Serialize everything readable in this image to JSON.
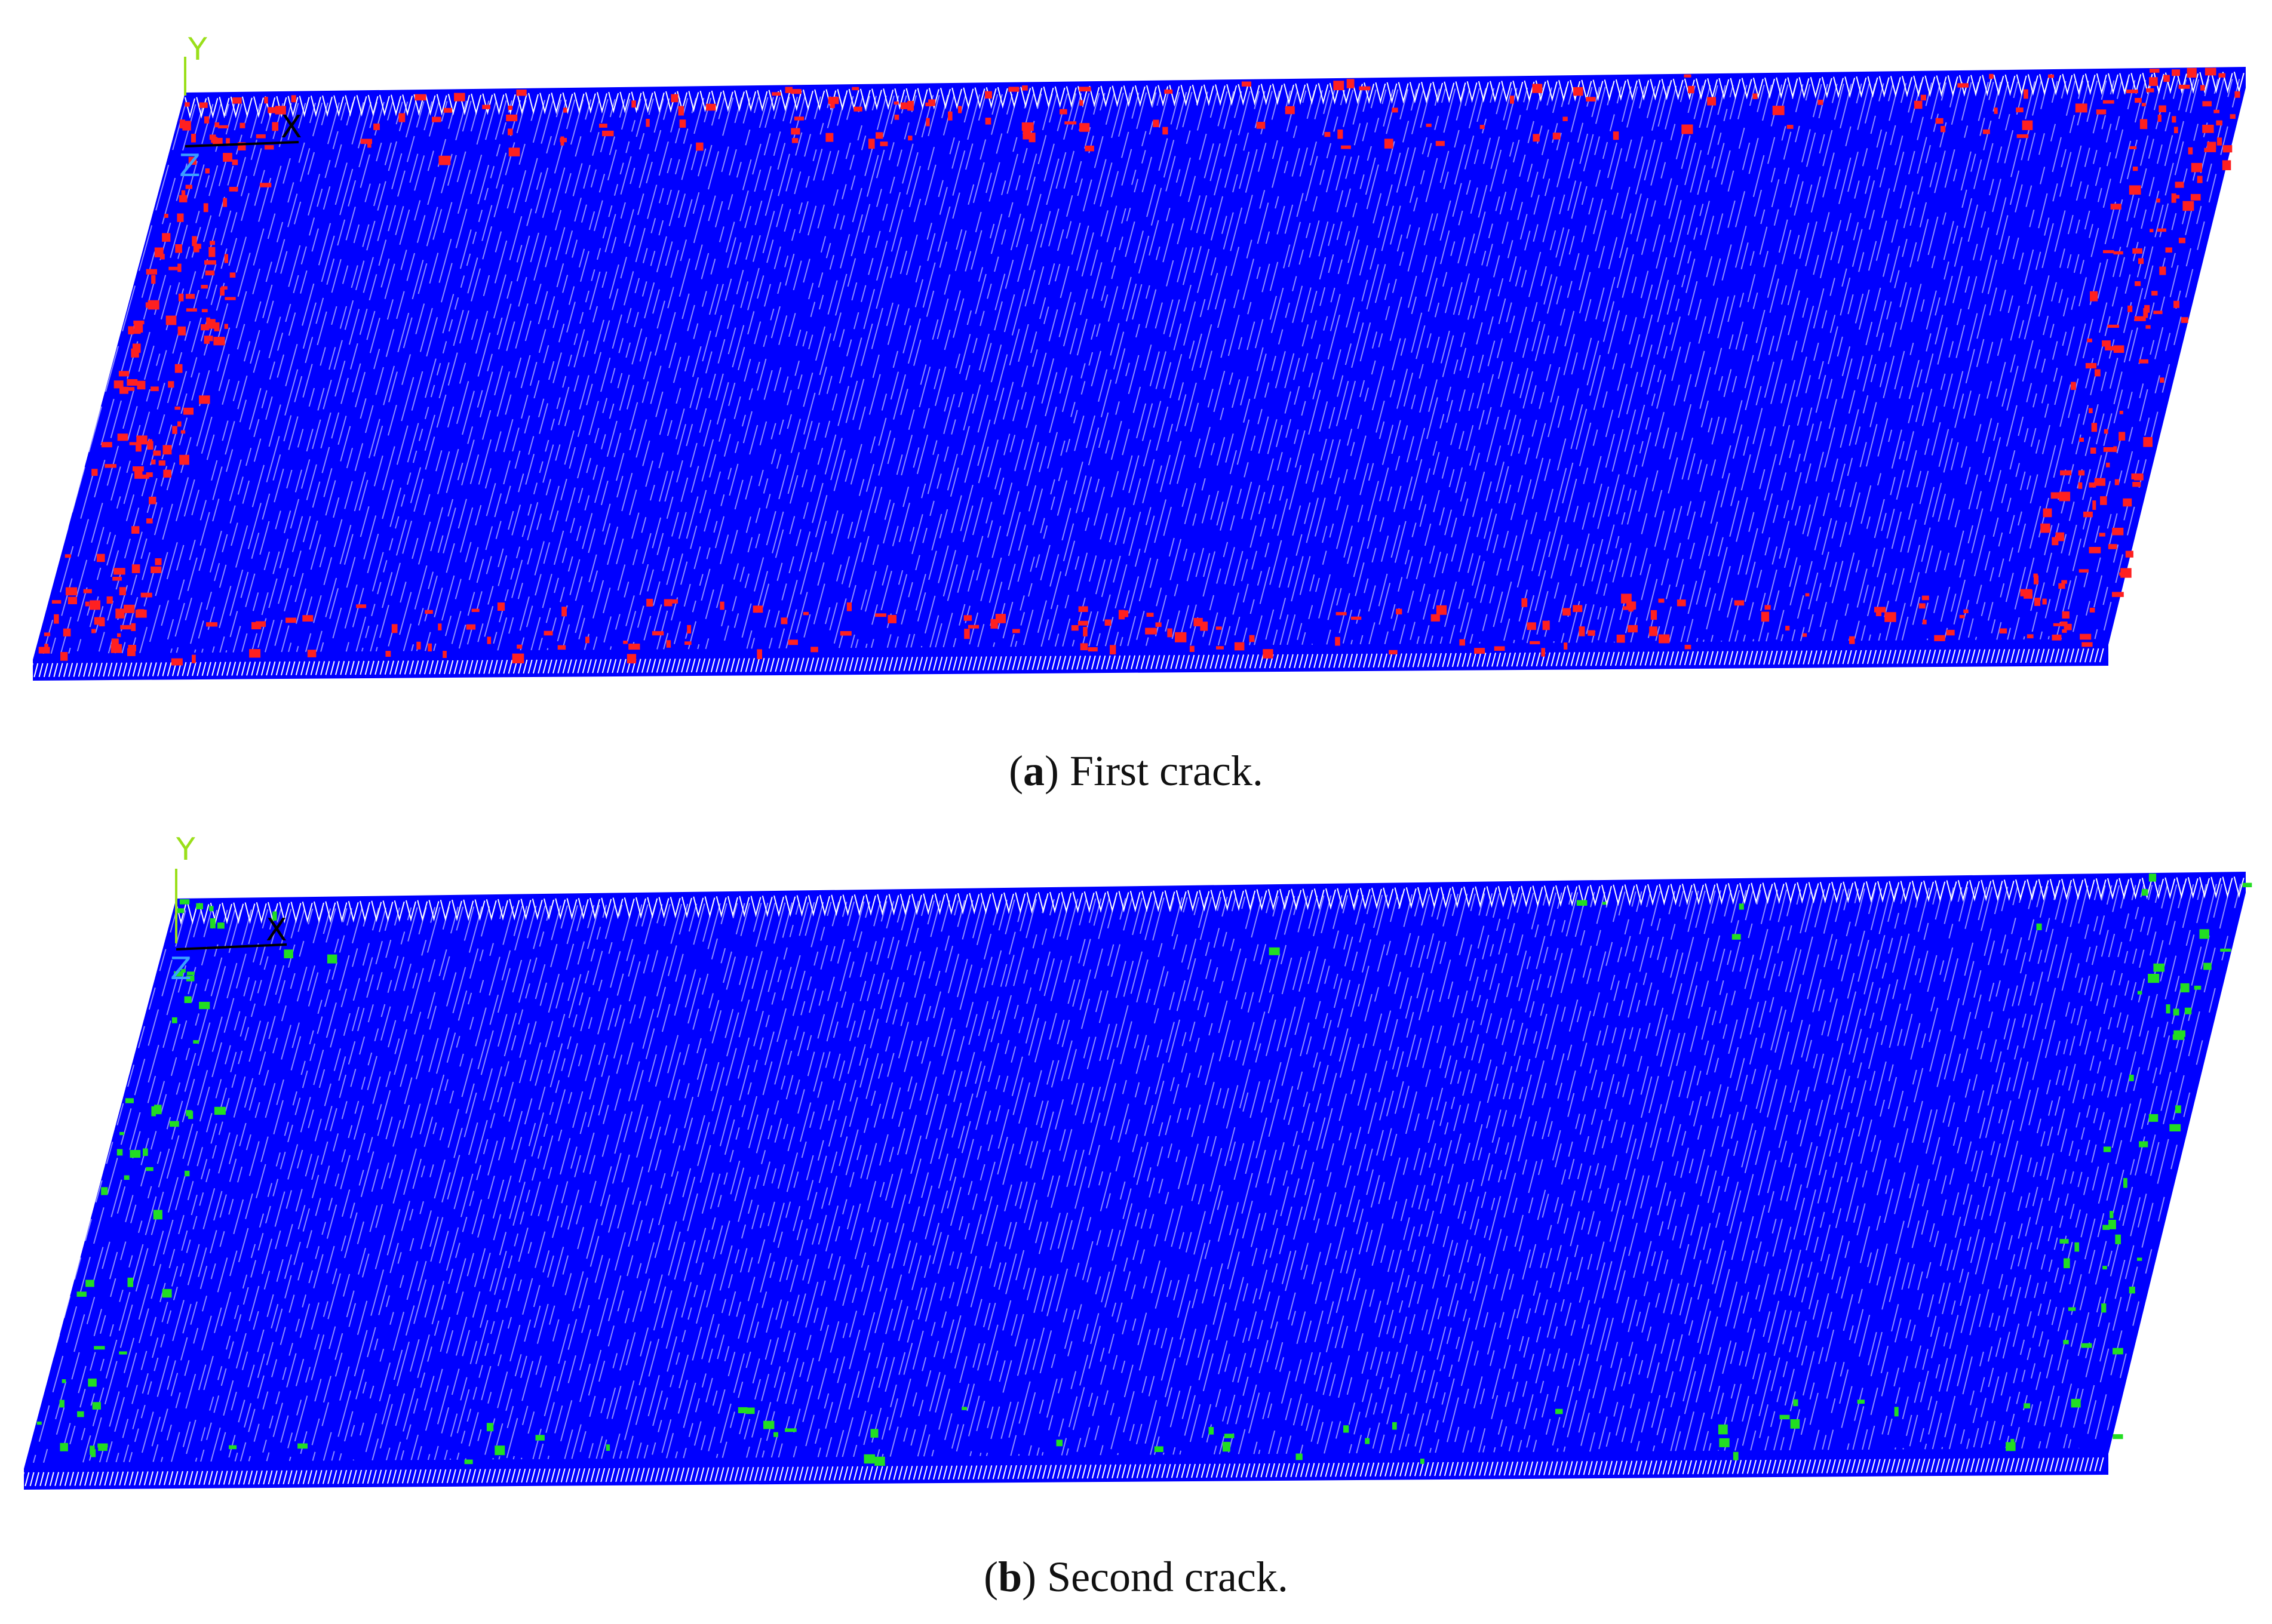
{
  "panels": [
    {
      "id": "a",
      "letter": "a",
      "caption_text": "First crack.",
      "crack_color": "#ff2020",
      "mesh_color": "#0000ff",
      "axis_y_label": "Y",
      "axis_x_label": "X",
      "axis_z_label": "Z"
    },
    {
      "id": "b",
      "letter": "b",
      "caption_text": "Second crack.",
      "crack_color": "#22dd22",
      "mesh_color": "#0000ff",
      "axis_y_label": "Y",
      "axis_x_label": "X",
      "axis_z_label": "Z"
    }
  ],
  "colors": {
    "axis_y": "#9adf1a",
    "axis_x": "#000000",
    "axis_z": "#3aa0ff"
  }
}
